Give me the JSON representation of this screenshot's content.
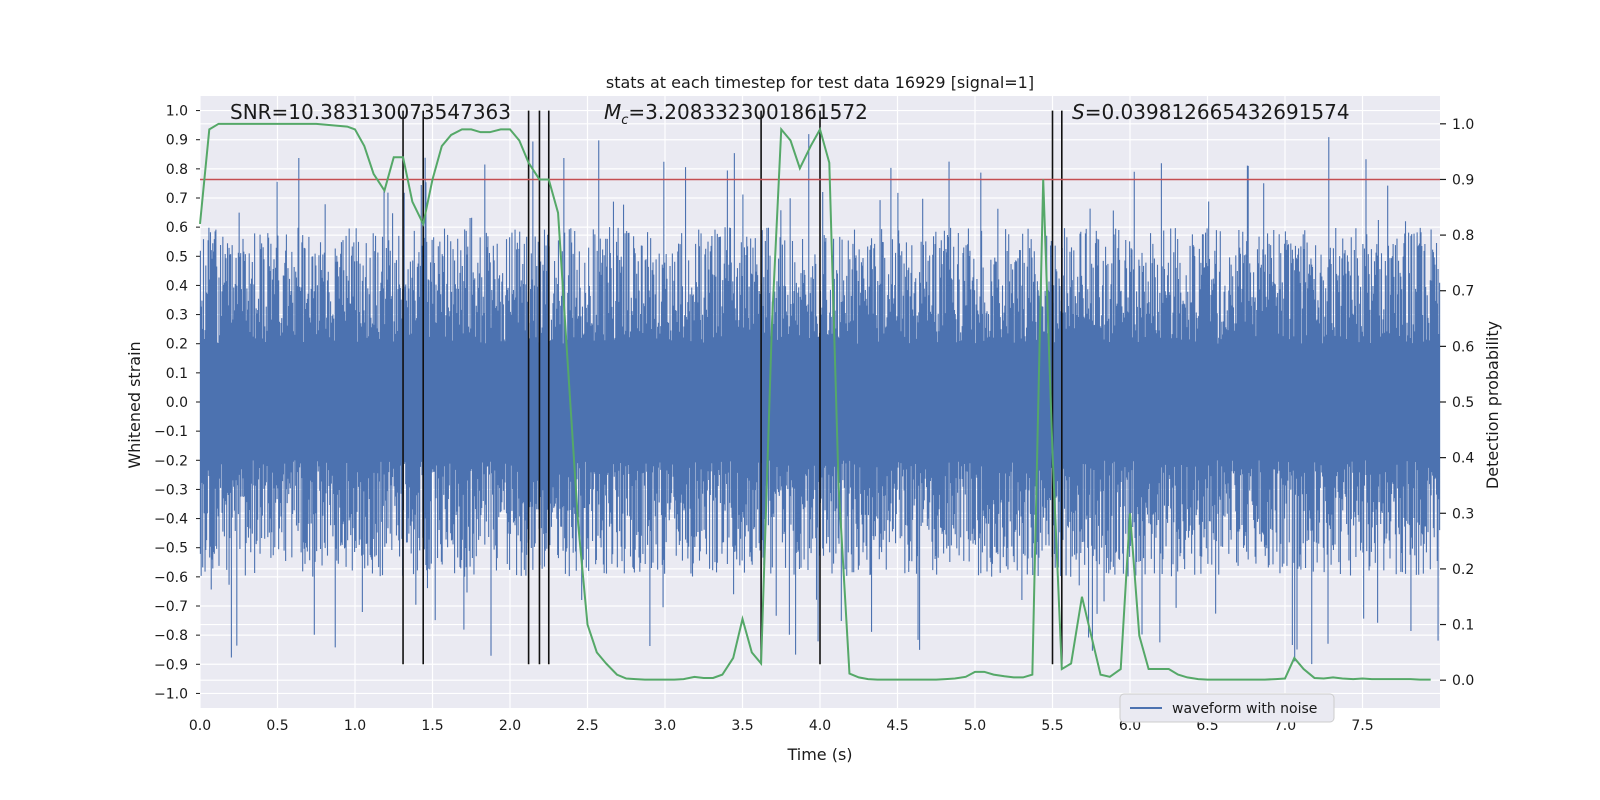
{
  "chart_data": {
    "type": "line",
    "title": "stats at each timestep for test data 16929 [signal=1]",
    "xlabel": "Time (s)",
    "ylabel": "Whitened strain",
    "y2label": "Detection probability",
    "xlim": [
      0,
      8
    ],
    "ylim": [
      -1.05,
      1.05
    ],
    "y2lim": [
      -0.05,
      1.05
    ],
    "x_ticks": [
      0.0,
      0.5,
      1.0,
      1.5,
      2.0,
      2.5,
      3.0,
      3.5,
      4.0,
      4.5,
      5.0,
      5.5,
      6.0,
      6.5,
      7.0,
      7.5
    ],
    "x_tick_labels": [
      "0.0",
      "0.5",
      "1.0",
      "1.5",
      "2.0",
      "2.5",
      "3.0",
      "3.5",
      "4.0",
      "4.5",
      "5.0",
      "5.5",
      "6.0",
      "6.5",
      "7.0",
      "7.5"
    ],
    "y_ticks": [
      1.0,
      0.9,
      0.8,
      0.7,
      0.6,
      0.5,
      0.4,
      0.3,
      0.2,
      0.1,
      0.0,
      -0.1,
      -0.2,
      -0.3,
      -0.4,
      -0.5,
      -0.6,
      -0.7,
      -0.8,
      -0.9,
      -1.0
    ],
    "y_tick_labels": [
      "1.0",
      "0.9",
      "0.8",
      "0.7",
      "0.6",
      "0.5",
      "0.4",
      "0.3",
      "0.2",
      "0.1",
      "0.0",
      "−0.1",
      "−0.2",
      "−0.3",
      "−0.4",
      "−0.5",
      "−0.6",
      "−0.7",
      "−0.8",
      "−0.9",
      "−1.0"
    ],
    "y2_ticks": [
      1.0,
      0.9,
      0.8,
      0.7,
      0.6,
      0.5,
      0.4,
      0.3,
      0.2,
      0.1,
      0.0
    ],
    "y2_tick_labels": [
      "1.0",
      "0.9",
      "0.8",
      "0.7",
      "0.6",
      "0.5",
      "0.4",
      "0.3",
      "0.2",
      "0.1",
      "0.0"
    ],
    "series": [
      {
        "name": "waveform with noise",
        "axis": "left",
        "style": "dense-noise",
        "sample_count": 1600,
        "envelope_pos": 0.6,
        "envelope_neg": -0.6,
        "spike_max": 0.92,
        "spike_min": -0.93,
        "seed": 16929,
        "color": "#4c72b0"
      },
      {
        "name": "detection probability",
        "axis": "right",
        "color": "#55a868",
        "x": [
          0.0,
          0.06,
          0.12,
          0.25,
          0.5,
          0.75,
          0.95,
          1.0,
          1.06,
          1.12,
          1.19,
          1.25,
          1.31,
          1.37,
          1.44,
          1.5,
          1.56,
          1.62,
          1.69,
          1.75,
          1.81,
          1.87,
          1.94,
          2.0,
          2.06,
          2.12,
          2.19,
          2.25,
          2.31,
          2.37,
          2.44,
          2.5,
          2.56,
          2.62,
          2.69,
          2.75,
          2.81,
          2.87,
          2.94,
          3.0,
          3.06,
          3.12,
          3.19,
          3.25,
          3.31,
          3.37,
          3.44,
          3.5,
          3.56,
          3.62,
          3.69,
          3.75,
          3.81,
          3.87,
          3.94,
          4.0,
          4.06,
          4.12,
          4.19,
          4.25,
          4.31,
          4.37,
          4.44,
          4.5,
          4.56,
          4.62,
          4.69,
          4.75,
          4.81,
          4.87,
          4.94,
          5.0,
          5.06,
          5.12,
          5.19,
          5.25,
          5.31,
          5.37,
          5.44,
          5.5,
          5.56,
          5.62,
          5.69,
          5.75,
          5.81,
          5.87,
          5.94,
          6.0,
          6.06,
          6.12,
          6.19,
          6.25,
          6.31,
          6.37,
          6.44,
          6.5,
          6.56,
          6.62,
          6.69,
          6.75,
          6.81,
          6.87,
          6.94,
          7.0,
          7.06,
          7.12,
          7.19,
          7.25,
          7.31,
          7.37,
          7.44,
          7.5,
          7.56,
          7.62,
          7.69,
          7.75,
          7.81,
          7.87,
          7.94
        ],
        "values": [
          0.82,
          0.99,
          1.0,
          1.0,
          1.0,
          1.0,
          0.995,
          0.99,
          0.96,
          0.91,
          0.88,
          0.94,
          0.94,
          0.86,
          0.82,
          0.9,
          0.96,
          0.98,
          0.99,
          0.99,
          0.985,
          0.985,
          0.99,
          0.99,
          0.97,
          0.93,
          0.9,
          0.9,
          0.84,
          0.58,
          0.28,
          0.1,
          0.05,
          0.03,
          0.01,
          0.003,
          0.002,
          0.001,
          0.001,
          0.001,
          0.001,
          0.002,
          0.006,
          0.004,
          0.004,
          0.01,
          0.04,
          0.11,
          0.05,
          0.03,
          0.64,
          0.99,
          0.97,
          0.92,
          0.96,
          0.99,
          0.93,
          0.35,
          0.012,
          0.005,
          0.002,
          0.001,
          0.001,
          0.001,
          0.001,
          0.001,
          0.001,
          0.001,
          0.002,
          0.003,
          0.006,
          0.015,
          0.015,
          0.01,
          0.007,
          0.005,
          0.005,
          0.01,
          0.9,
          0.41,
          0.02,
          0.03,
          0.15,
          0.08,
          0.01,
          0.006,
          0.02,
          0.3,
          0.08,
          0.02,
          0.02,
          0.02,
          0.01,
          0.005,
          0.002,
          0.001,
          0.001,
          0.001,
          0.001,
          0.001,
          0.001,
          0.001,
          0.002,
          0.003,
          0.04,
          0.02,
          0.004,
          0.003,
          0.005,
          0.003,
          0.002,
          0.003,
          0.002,
          0.002,
          0.002,
          0.002,
          0.002,
          0.001,
          0.001
        ]
      }
    ],
    "threshold": {
      "axis": "right",
      "value": 0.9,
      "color": "#c44e52"
    },
    "vlines": [
      1.31,
      1.44,
      2.12,
      2.19,
      2.25,
      3.62,
      4.0,
      5.5,
      5.56
    ],
    "vline_ymin": -0.9,
    "vline_ymax": 1.0,
    "annotations": {
      "snr": "SNR=10.383130073547363",
      "mc_symbol": "M",
      "mc_sub": "c",
      "mc_value": "=3.2083323001861572",
      "s_symbol": "S",
      "s_value": "=0.039812665432691574"
    },
    "legend": {
      "label": "waveform with noise",
      "location": "lower-right"
    },
    "grid": true
  }
}
